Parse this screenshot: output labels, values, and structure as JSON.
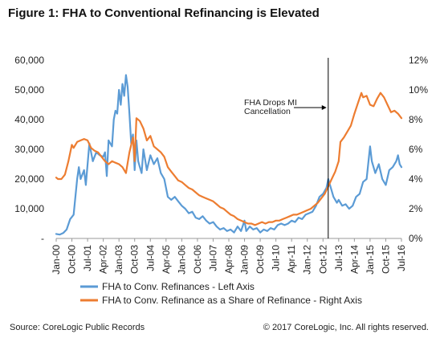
{
  "chart_data": {
    "type": "line",
    "title": "Figure 1: FHA to Conventional Refinancing is Elevated",
    "x_tick_labels": [
      "Jan-00",
      "Oct-00",
      "Jul-01",
      "Apr-02",
      "Jan-03",
      "Oct-03",
      "Jul-04",
      "Apr-05",
      "Jan-06",
      "Oct-06",
      "Jul-07",
      "Apr-08",
      "Jan-09",
      "Oct-09",
      "Jul-10",
      "Apr-11",
      "Jan-12",
      "Oct-12",
      "Jul-13",
      "Apr-14",
      "Jan-15",
      "Oct-15",
      "Jul-16"
    ],
    "y_left": {
      "min": 0,
      "max": 60000,
      "ticks": [
        "-",
        "10,000",
        "20,000",
        "30,000",
        "40,000",
        "50,000",
        "60,000"
      ]
    },
    "y_right": {
      "min": 0,
      "max": 12,
      "ticks": [
        "0%",
        "2%",
        "4%",
        "6%",
        "8%",
        "10%",
        "12%"
      ]
    },
    "series": [
      {
        "name": "FHA to Conv. Refinances - Left Axis",
        "axis": "left",
        "color": "#5b9bd5",
        "points": [
          [
            "2000-01",
            1500
          ],
          [
            "2000-03",
            1300
          ],
          [
            "2000-05",
            1800
          ],
          [
            "2000-07",
            3000
          ],
          [
            "2000-09",
            6500
          ],
          [
            "2000-11",
            8000
          ],
          [
            "2001-01",
            20000
          ],
          [
            "2001-02",
            24000
          ],
          [
            "2001-03",
            20000
          ],
          [
            "2001-05",
            23000
          ],
          [
            "2001-06",
            18000
          ],
          [
            "2001-08",
            32000
          ],
          [
            "2001-10",
            26000
          ],
          [
            "2001-12",
            29000
          ],
          [
            "2002-02",
            28000
          ],
          [
            "2002-04",
            27500
          ],
          [
            "2002-05",
            29000
          ],
          [
            "2002-06",
            21000
          ],
          [
            "2002-07",
            33000
          ],
          [
            "2002-09",
            31000
          ],
          [
            "2002-10",
            40000
          ],
          [
            "2002-11",
            43000
          ],
          [
            "2002-12",
            42000
          ],
          [
            "2003-01",
            50000
          ],
          [
            "2003-02",
            45000
          ],
          [
            "2003-03",
            52000
          ],
          [
            "2003-04",
            48000
          ],
          [
            "2003-05",
            55000
          ],
          [
            "2003-06",
            51000
          ],
          [
            "2003-07",
            42000
          ],
          [
            "2003-08",
            32000
          ],
          [
            "2003-09",
            35000
          ],
          [
            "2003-10",
            23000
          ],
          [
            "2003-11",
            33000
          ],
          [
            "2003-12",
            26000
          ],
          [
            "2004-01",
            24000
          ],
          [
            "2004-02",
            22000
          ],
          [
            "2004-03",
            30000
          ],
          [
            "2004-05",
            23000
          ],
          [
            "2004-07",
            28000
          ],
          [
            "2004-09",
            25000
          ],
          [
            "2004-11",
            27000
          ],
          [
            "2005-01",
            22000
          ],
          [
            "2005-03",
            20000
          ],
          [
            "2005-05",
            14000
          ],
          [
            "2005-07",
            13000
          ],
          [
            "2005-09",
            14000
          ],
          [
            "2005-11",
            12500
          ],
          [
            "2006-01",
            11000
          ],
          [
            "2006-03",
            10000
          ],
          [
            "2006-05",
            8500
          ],
          [
            "2006-07",
            9000
          ],
          [
            "2006-09",
            7000
          ],
          [
            "2006-11",
            6500
          ],
          [
            "2007-01",
            7500
          ],
          [
            "2007-03",
            6000
          ],
          [
            "2007-05",
            5000
          ],
          [
            "2007-07",
            5500
          ],
          [
            "2007-09",
            4000
          ],
          [
            "2007-11",
            3000
          ],
          [
            "2008-01",
            3500
          ],
          [
            "2008-03",
            2500
          ],
          [
            "2008-05",
            3000
          ],
          [
            "2008-07",
            2000
          ],
          [
            "2008-09",
            4000
          ],
          [
            "2008-11",
            2500
          ],
          [
            "2009-01",
            6000
          ],
          [
            "2009-02",
            2500
          ],
          [
            "2009-04",
            4000
          ],
          [
            "2009-06",
            3000
          ],
          [
            "2009-08",
            3500
          ],
          [
            "2009-10",
            2000
          ],
          [
            "2009-12",
            3000
          ],
          [
            "2010-02",
            2500
          ],
          [
            "2010-04",
            3500
          ],
          [
            "2010-06",
            3000
          ],
          [
            "2010-08",
            4500
          ],
          [
            "2010-10",
            5000
          ],
          [
            "2010-12",
            4500
          ],
          [
            "2011-02",
            5000
          ],
          [
            "2011-04",
            6000
          ],
          [
            "2011-06",
            5500
          ],
          [
            "2011-08",
            7000
          ],
          [
            "2011-10",
            6500
          ],
          [
            "2011-12",
            8000
          ],
          [
            "2012-02",
            8500
          ],
          [
            "2012-04",
            9000
          ],
          [
            "2012-06",
            11000
          ],
          [
            "2012-08",
            14000
          ],
          [
            "2012-10",
            15000
          ],
          [
            "2012-12",
            17000
          ],
          [
            "2013-01",
            20000
          ],
          [
            "2013-02",
            18000
          ],
          [
            "2013-04",
            14000
          ],
          [
            "2013-06",
            12000
          ],
          [
            "2013-07",
            13000
          ],
          [
            "2013-09",
            11000
          ],
          [
            "2013-11",
            11500
          ],
          [
            "2014-01",
            10000
          ],
          [
            "2014-03",
            11000
          ],
          [
            "2014-05",
            14000
          ],
          [
            "2014-07",
            15000
          ],
          [
            "2014-09",
            19000
          ],
          [
            "2014-11",
            20000
          ],
          [
            "2015-01",
            31000
          ],
          [
            "2015-02",
            26000
          ],
          [
            "2015-04",
            22000
          ],
          [
            "2015-06",
            25000
          ],
          [
            "2015-08",
            20000
          ],
          [
            "2015-10",
            18000
          ],
          [
            "2015-12",
            23000
          ],
          [
            "2016-02",
            24000
          ],
          [
            "2016-04",
            26000
          ],
          [
            "2016-05",
            28000
          ],
          [
            "2016-06",
            25000
          ],
          [
            "2016-07",
            24000
          ]
        ]
      },
      {
        "name": "FHA to Conv. Refinance as a Share of Refinance - Right Axis",
        "axis": "right",
        "color": "#ed7d31",
        "points": [
          [
            "2000-01",
            4.1
          ],
          [
            "2000-02",
            4.0
          ],
          [
            "2000-04",
            4.0
          ],
          [
            "2000-06",
            4.3
          ],
          [
            "2000-08",
            5.2
          ],
          [
            "2000-10",
            6.3
          ],
          [
            "2000-11",
            6.1
          ],
          [
            "2001-01",
            6.5
          ],
          [
            "2001-03",
            6.6
          ],
          [
            "2001-05",
            6.7
          ],
          [
            "2001-07",
            6.6
          ],
          [
            "2001-09",
            6.1
          ],
          [
            "2001-11",
            5.9
          ],
          [
            "2002-01",
            5.8
          ],
          [
            "2002-03",
            5.5
          ],
          [
            "2002-05",
            5.2
          ],
          [
            "2002-07",
            5.0
          ],
          [
            "2002-09",
            5.2
          ],
          [
            "2002-11",
            5.1
          ],
          [
            "2003-01",
            5.0
          ],
          [
            "2003-03",
            4.8
          ],
          [
            "2003-05",
            4.4
          ],
          [
            "2003-07",
            5.8
          ],
          [
            "2003-09",
            6.8
          ],
          [
            "2003-10",
            5.2
          ],
          [
            "2003-11",
            8.1
          ],
          [
            "2004-01",
            7.9
          ],
          [
            "2004-03",
            7.4
          ],
          [
            "2004-05",
            6.6
          ],
          [
            "2004-07",
            6.9
          ],
          [
            "2004-09",
            6.2
          ],
          [
            "2004-11",
            6.0
          ],
          [
            "2005-01",
            5.8
          ],
          [
            "2005-03",
            5.5
          ],
          [
            "2005-05",
            4.8
          ],
          [
            "2005-07",
            4.5
          ],
          [
            "2005-09",
            4.2
          ],
          [
            "2005-11",
            3.9
          ],
          [
            "2006-01",
            3.8
          ],
          [
            "2006-03",
            3.6
          ],
          [
            "2006-05",
            3.4
          ],
          [
            "2006-07",
            3.3
          ],
          [
            "2006-09",
            3.1
          ],
          [
            "2006-11",
            2.9
          ],
          [
            "2007-01",
            2.8
          ],
          [
            "2007-03",
            2.7
          ],
          [
            "2007-05",
            2.6
          ],
          [
            "2007-07",
            2.5
          ],
          [
            "2007-09",
            2.3
          ],
          [
            "2007-11",
            2.1
          ],
          [
            "2008-01",
            2.0
          ],
          [
            "2008-03",
            1.8
          ],
          [
            "2008-05",
            1.6
          ],
          [
            "2008-07",
            1.5
          ],
          [
            "2008-09",
            1.3
          ],
          [
            "2008-11",
            1.2
          ],
          [
            "2009-01",
            1.1
          ],
          [
            "2009-03",
            1.0
          ],
          [
            "2009-05",
            1.0
          ],
          [
            "2009-07",
            0.9
          ],
          [
            "2009-09",
            1.0
          ],
          [
            "2009-11",
            1.1
          ],
          [
            "2010-01",
            1.0
          ],
          [
            "2010-03",
            1.1
          ],
          [
            "2010-05",
            1.1
          ],
          [
            "2010-07",
            1.2
          ],
          [
            "2010-09",
            1.2
          ],
          [
            "2010-11",
            1.3
          ],
          [
            "2011-01",
            1.4
          ],
          [
            "2011-03",
            1.5
          ],
          [
            "2011-05",
            1.6
          ],
          [
            "2011-07",
            1.6
          ],
          [
            "2011-09",
            1.7
          ],
          [
            "2011-11",
            1.8
          ],
          [
            "2012-01",
            1.9
          ],
          [
            "2012-03",
            2.0
          ],
          [
            "2012-05",
            2.2
          ],
          [
            "2012-07",
            2.4
          ],
          [
            "2012-09",
            2.7
          ],
          [
            "2012-11",
            3.0
          ],
          [
            "2013-01",
            3.5
          ],
          [
            "2013-03",
            4.0
          ],
          [
            "2013-05",
            4.5
          ],
          [
            "2013-07",
            5.2
          ],
          [
            "2013-08",
            6.5
          ],
          [
            "2013-10",
            6.8
          ],
          [
            "2013-12",
            7.2
          ],
          [
            "2014-02",
            7.6
          ],
          [
            "2014-04",
            8.4
          ],
          [
            "2014-06",
            9.1
          ],
          [
            "2014-08",
            9.8
          ],
          [
            "2014-09",
            9.5
          ],
          [
            "2014-11",
            9.6
          ],
          [
            "2015-01",
            9.0
          ],
          [
            "2015-03",
            8.9
          ],
          [
            "2015-05",
            9.4
          ],
          [
            "2015-07",
            9.8
          ],
          [
            "2015-09",
            9.5
          ],
          [
            "2015-11",
            9.0
          ],
          [
            "2016-01",
            8.5
          ],
          [
            "2016-03",
            8.6
          ],
          [
            "2016-05",
            8.4
          ],
          [
            "2016-07",
            8.1
          ]
        ]
      }
    ],
    "annotation": {
      "lines": [
        "FHA Drops MI",
        "Cancellation"
      ],
      "date": "2013-01"
    }
  },
  "footer": {
    "source": "Source: CoreLogic Public Records",
    "copyright": "© 2017 CoreLogic, Inc. All rights reserved."
  }
}
